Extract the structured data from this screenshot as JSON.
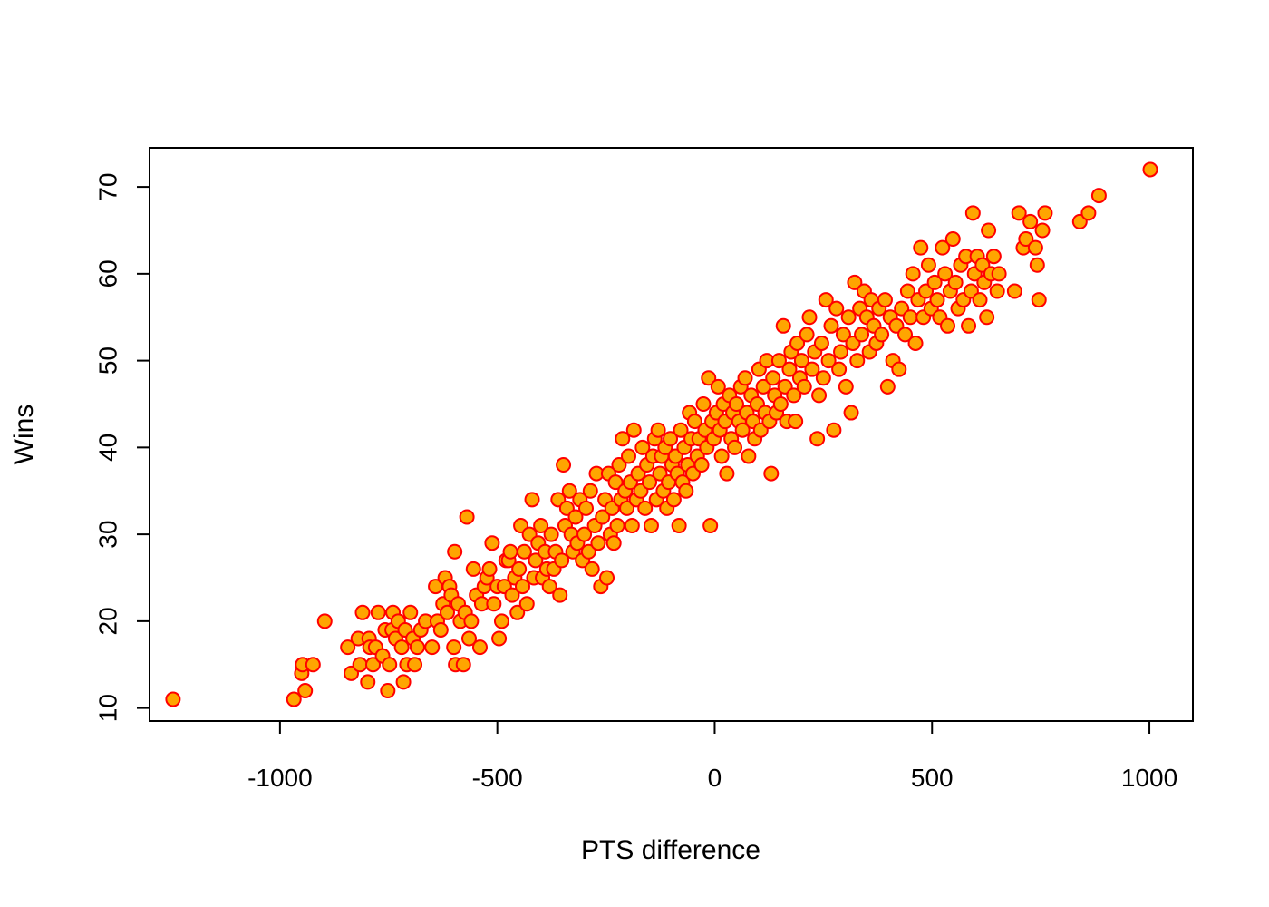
{
  "chart_data": {
    "type": "scatter",
    "title": "",
    "xlabel": "PTS difference",
    "ylabel": "Wins",
    "xlim": [
      -1300,
      1100
    ],
    "ylim": [
      8.5,
      74.5
    ],
    "x_ticks": [
      -1000,
      -500,
      0,
      500,
      1000
    ],
    "x_tick_labels": [
      "-1000",
      "-500",
      "0",
      "500",
      "1000"
    ],
    "y_ticks": [
      10,
      20,
      30,
      40,
      50,
      60,
      70
    ],
    "y_tick_labels": [
      "10",
      "20",
      "30",
      "40",
      "50",
      "60",
      "70"
    ],
    "grid": false,
    "legend": "none",
    "marker": {
      "shape": "circle",
      "fill": "#FFA500",
      "edge": "#FF0000"
    },
    "points": [
      [
        -1246,
        11
      ],
      [
        -968,
        11
      ],
      [
        -942,
        12
      ],
      [
        -950,
        14
      ],
      [
        -948,
        15
      ],
      [
        -924,
        15
      ],
      [
        -897,
        20
      ],
      [
        -844,
        17
      ],
      [
        -836,
        14
      ],
      [
        -820,
        18
      ],
      [
        -816,
        15
      ],
      [
        -810,
        21
      ],
      [
        -798,
        13
      ],
      [
        -795,
        18
      ],
      [
        -793,
        17
      ],
      [
        -786,
        15
      ],
      [
        -780,
        17
      ],
      [
        -774,
        21
      ],
      [
        -764,
        16
      ],
      [
        -758,
        19
      ],
      [
        -752,
        12
      ],
      [
        -748,
        15
      ],
      [
        -742,
        19
      ],
      [
        -740,
        21
      ],
      [
        -734,
        18
      ],
      [
        -728,
        20
      ],
      [
        -720,
        17
      ],
      [
        -716,
        13
      ],
      [
        -712,
        19
      ],
      [
        -708,
        15
      ],
      [
        -700,
        21
      ],
      [
        -694,
        18
      ],
      [
        -690,
        15
      ],
      [
        -684,
        17
      ],
      [
        -676,
        19
      ],
      [
        -665,
        20
      ],
      [
        -650,
        17
      ],
      [
        -642,
        24
      ],
      [
        -638,
        20
      ],
      [
        -630,
        19
      ],
      [
        -625,
        22
      ],
      [
        -620,
        25
      ],
      [
        -615,
        21
      ],
      [
        -610,
        24
      ],
      [
        -606,
        23
      ],
      [
        -600,
        17
      ],
      [
        -598,
        28
      ],
      [
        -596,
        15
      ],
      [
        -590,
        22
      ],
      [
        -585,
        20
      ],
      [
        -578,
        15
      ],
      [
        -574,
        21
      ],
      [
        -570,
        32
      ],
      [
        -565,
        18
      ],
      [
        -560,
        20
      ],
      [
        -555,
        26
      ],
      [
        -548,
        23
      ],
      [
        -540,
        17
      ],
      [
        -536,
        22
      ],
      [
        -530,
        24
      ],
      [
        -524,
        25
      ],
      [
        -518,
        26
      ],
      [
        -512,
        29
      ],
      [
        -508,
        22
      ],
      [
        -500,
        24
      ],
      [
        -496,
        18
      ],
      [
        -490,
        20
      ],
      [
        -484,
        24
      ],
      [
        -480,
        27
      ],
      [
        -474,
        27
      ],
      [
        -470,
        28
      ],
      [
        -466,
        23
      ],
      [
        -460,
        25
      ],
      [
        -454,
        21
      ],
      [
        -450,
        26
      ],
      [
        -446,
        31
      ],
      [
        -442,
        24
      ],
      [
        -438,
        28
      ],
      [
        -432,
        22
      ],
      [
        -426,
        30
      ],
      [
        -420,
        34
      ],
      [
        -416,
        25
      ],
      [
        -412,
        27
      ],
      [
        -406,
        29
      ],
      [
        -400,
        31
      ],
      [
        -396,
        25
      ],
      [
        -390,
        28
      ],
      [
        -386,
        26
      ],
      [
        -380,
        24
      ],
      [
        -376,
        30
      ],
      [
        -370,
        26
      ],
      [
        -366,
        28
      ],
      [
        -360,
        34
      ],
      [
        -356,
        23
      ],
      [
        -352,
        27
      ],
      [
        -348,
        38
      ],
      [
        -344,
        31
      ],
      [
        -340,
        33
      ],
      [
        -334,
        35
      ],
      [
        -330,
        30
      ],
      [
        -326,
        28
      ],
      [
        -320,
        32
      ],
      [
        -316,
        29
      ],
      [
        -310,
        34
      ],
      [
        -304,
        27
      ],
      [
        -300,
        30
      ],
      [
        -296,
        33
      ],
      [
        -290,
        28
      ],
      [
        -286,
        35
      ],
      [
        -282,
        26
      ],
      [
        -276,
        31
      ],
      [
        -272,
        37
      ],
      [
        -268,
        29
      ],
      [
        -262,
        24
      ],
      [
        -258,
        32
      ],
      [
        -252,
        34
      ],
      [
        -248,
        25
      ],
      [
        -244,
        37
      ],
      [
        -240,
        30
      ],
      [
        -236,
        33
      ],
      [
        -232,
        29
      ],
      [
        -228,
        36
      ],
      [
        -224,
        31
      ],
      [
        -220,
        38
      ],
      [
        -216,
        34
      ],
      [
        -212,
        41
      ],
      [
        -206,
        35
      ],
      [
        -202,
        33
      ],
      [
        -198,
        39
      ],
      [
        -194,
        36
      ],
      [
        -190,
        31
      ],
      [
        -186,
        42
      ],
      [
        -180,
        34
      ],
      [
        -176,
        37
      ],
      [
        -170,
        35
      ],
      [
        -166,
        40
      ],
      [
        -160,
        33
      ],
      [
        -156,
        38
      ],
      [
        -150,
        36
      ],
      [
        -146,
        31
      ],
      [
        -142,
        39
      ],
      [
        -138,
        41
      ],
      [
        -134,
        34
      ],
      [
        -130,
        42
      ],
      [
        -126,
        37
      ],
      [
        -122,
        39
      ],
      [
        -118,
        35
      ],
      [
        -114,
        40
      ],
      [
        -110,
        33
      ],
      [
        -106,
        36
      ],
      [
        -102,
        41
      ],
      [
        -98,
        38
      ],
      [
        -94,
        34
      ],
      [
        -90,
        39
      ],
      [
        -86,
        37
      ],
      [
        -82,
        31
      ],
      [
        -78,
        42
      ],
      [
        -74,
        36
      ],
      [
        -70,
        40
      ],
      [
        -66,
        35
      ],
      [
        -62,
        38
      ],
      [
        -58,
        44
      ],
      [
        -54,
        41
      ],
      [
        -50,
        37
      ],
      [
        -46,
        43
      ],
      [
        -40,
        39
      ],
      [
        -36,
        41
      ],
      [
        -30,
        38
      ],
      [
        -26,
        45
      ],
      [
        -22,
        42
      ],
      [
        -18,
        40
      ],
      [
        -14,
        48
      ],
      [
        -10,
        31
      ],
      [
        -6,
        43
      ],
      [
        -2,
        41
      ],
      [
        4,
        44
      ],
      [
        8,
        47
      ],
      [
        12,
        42
      ],
      [
        16,
        39
      ],
      [
        20,
        45
      ],
      [
        24,
        43
      ],
      [
        28,
        37
      ],
      [
        34,
        46
      ],
      [
        38,
        41
      ],
      [
        42,
        44
      ],
      [
        46,
        40
      ],
      [
        50,
        45
      ],
      [
        56,
        43
      ],
      [
        60,
        47
      ],
      [
        64,
        42
      ],
      [
        70,
        48
      ],
      [
        74,
        44
      ],
      [
        78,
        39
      ],
      [
        84,
        46
      ],
      [
        88,
        43
      ],
      [
        92,
        41
      ],
      [
        98,
        45
      ],
      [
        102,
        49
      ],
      [
        106,
        42
      ],
      [
        112,
        47
      ],
      [
        116,
        44
      ],
      [
        120,
        50
      ],
      [
        126,
        43
      ],
      [
        130,
        37
      ],
      [
        134,
        48
      ],
      [
        138,
        46
      ],
      [
        142,
        44
      ],
      [
        148,
        50
      ],
      [
        152,
        45
      ],
      [
        158,
        54
      ],
      [
        162,
        47
      ],
      [
        166,
        43
      ],
      [
        172,
        49
      ],
      [
        176,
        51
      ],
      [
        182,
        46
      ],
      [
        186,
        43
      ],
      [
        190,
        52
      ],
      [
        196,
        48
      ],
      [
        200,
        50
      ],
      [
        206,
        47
      ],
      [
        212,
        53
      ],
      [
        218,
        55
      ],
      [
        224,
        49
      ],
      [
        230,
        51
      ],
      [
        236,
        41
      ],
      [
        240,
        46
      ],
      [
        246,
        52
      ],
      [
        250,
        48
      ],
      [
        256,
        57
      ],
      [
        262,
        50
      ],
      [
        268,
        54
      ],
      [
        274,
        42
      ],
      [
        280,
        56
      ],
      [
        286,
        49
      ],
      [
        290,
        51
      ],
      [
        296,
        53
      ],
      [
        302,
        47
      ],
      [
        308,
        55
      ],
      [
        314,
        44
      ],
      [
        318,
        52
      ],
      [
        322,
        59
      ],
      [
        328,
        50
      ],
      [
        334,
        56
      ],
      [
        338,
        53
      ],
      [
        344,
        58
      ],
      [
        350,
        55
      ],
      [
        356,
        51
      ],
      [
        360,
        57
      ],
      [
        366,
        54
      ],
      [
        372,
        52
      ],
      [
        378,
        56
      ],
      [
        384,
        53
      ],
      [
        392,
        57
      ],
      [
        398,
        47
      ],
      [
        404,
        55
      ],
      [
        410,
        50
      ],
      [
        418,
        54
      ],
      [
        424,
        49
      ],
      [
        430,
        56
      ],
      [
        438,
        53
      ],
      [
        444,
        58
      ],
      [
        450,
        55
      ],
      [
        456,
        60
      ],
      [
        462,
        52
      ],
      [
        468,
        57
      ],
      [
        474,
        63
      ],
      [
        480,
        55
      ],
      [
        486,
        58
      ],
      [
        492,
        61
      ],
      [
        498,
        56
      ],
      [
        506,
        59
      ],
      [
        512,
        57
      ],
      [
        518,
        55
      ],
      [
        524,
        63
      ],
      [
        530,
        60
      ],
      [
        536,
        54
      ],
      [
        542,
        58
      ],
      [
        548,
        64
      ],
      [
        554,
        59
      ],
      [
        560,
        56
      ],
      [
        566,
        61
      ],
      [
        572,
        57
      ],
      [
        578,
        62
      ],
      [
        584,
        54
      ],
      [
        590,
        58
      ],
      [
        594,
        67
      ],
      [
        598,
        60
      ],
      [
        604,
        62
      ],
      [
        610,
        57
      ],
      [
        616,
        61
      ],
      [
        620,
        59
      ],
      [
        626,
        55
      ],
      [
        630,
        65
      ],
      [
        636,
        60
      ],
      [
        642,
        62
      ],
      [
        650,
        58
      ],
      [
        654,
        60
      ],
      [
        690,
        58
      ],
      [
        700,
        67
      ],
      [
        710,
        63
      ],
      [
        716,
        64
      ],
      [
        726,
        66
      ],
      [
        738,
        63
      ],
      [
        742,
        61
      ],
      [
        746,
        57
      ],
      [
        754,
        65
      ],
      [
        760,
        67
      ],
      [
        840,
        66
      ],
      [
        860,
        67
      ],
      [
        884,
        69
      ],
      [
        1002,
        72
      ]
    ]
  }
}
